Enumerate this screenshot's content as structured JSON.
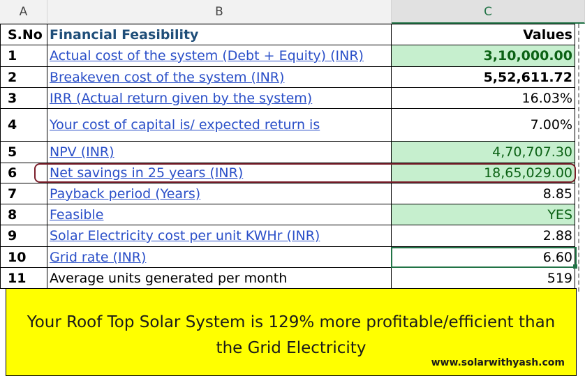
{
  "columns": {
    "a": "A",
    "b": "B",
    "c": "C"
  },
  "header": {
    "sno": "S.No",
    "title": "Financial Feasibility",
    "values": "Values"
  },
  "rows": [
    {
      "sno": "1",
      "label": "Actual cost of the system (Debt + Equity) (INR)",
      "value": "3,10,000.00"
    },
    {
      "sno": "2",
      "label": "Breakeven cost of the system (INR)",
      "value": "5,52,611.72"
    },
    {
      "sno": "3",
      "label": "IRR (Actual return given by the system)",
      "value": "16.03%"
    },
    {
      "sno": "4",
      "label": "Your cost of capital is/ expected return is ",
      "value": "7.00%"
    },
    {
      "sno": "5",
      "label": "NPV (INR)",
      "value": "4,70,707.30"
    },
    {
      "sno": "6",
      "label": "Net savings in 25 years (INR)",
      "value": "18,65,029.00"
    },
    {
      "sno": "7",
      "label": "Payback period (Years)",
      "value": "8.85"
    },
    {
      "sno": "8",
      "label": "Feasible",
      "value": "YES"
    },
    {
      "sno": "9",
      "label": "Solar Electricity cost per unit KWHr (INR)",
      "value": "2.88"
    },
    {
      "sno": "10",
      "label": "Grid rate (INR)",
      "value": "6.60"
    },
    {
      "sno": "11",
      "label": "Average units generated per month",
      "value": "519"
    }
  ],
  "banner": {
    "line1": "Your Roof Top Solar System is 129% more profitable/efficient than",
    "line2": "the Grid Electricity",
    "url": "www.solarwithyash.com"
  },
  "colors": {
    "accent": "#217346",
    "highlight_fill": "#c6efce",
    "banner_fill": "#ffff00",
    "oval": "#7b1f2b"
  }
}
